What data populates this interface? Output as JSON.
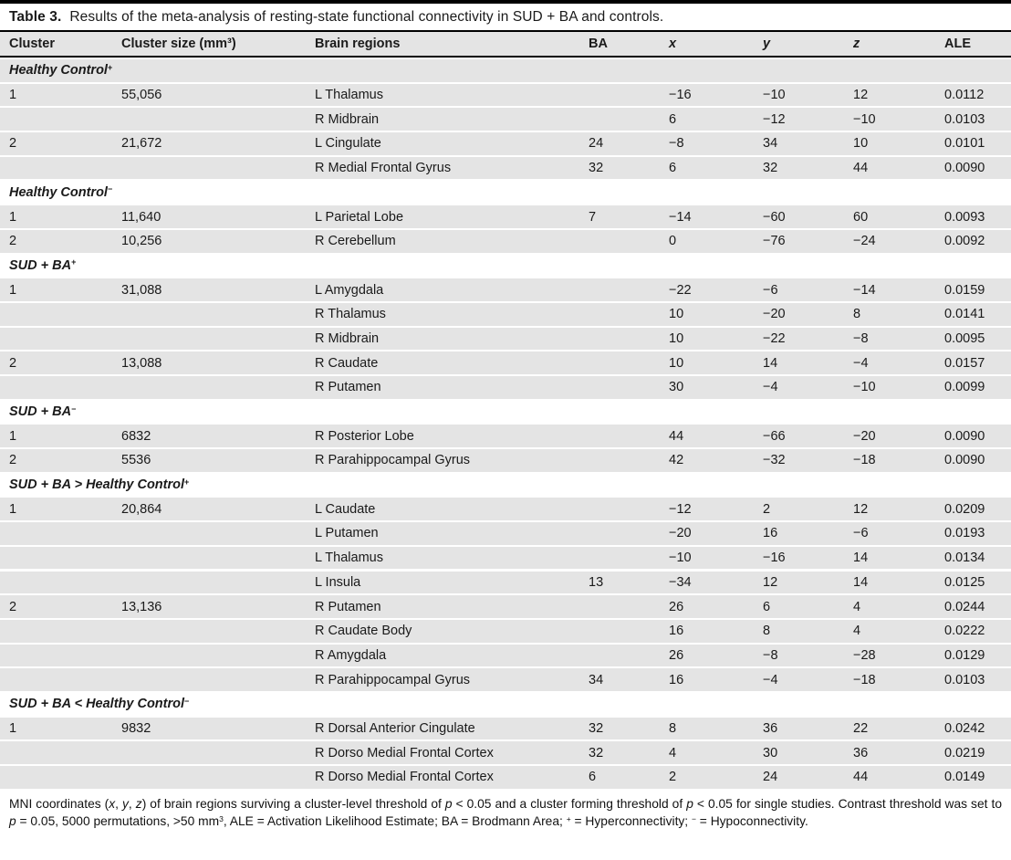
{
  "title": {
    "label": "Table 3.",
    "text": "Results of the meta-analysis of resting-state functional connectivity in SUD + BA and controls."
  },
  "columns": [
    {
      "key": "cluster",
      "label": "Cluster"
    },
    {
      "key": "size",
      "label": "Cluster size (mm³)"
    },
    {
      "key": "region",
      "label": "Brain regions"
    },
    {
      "key": "ba",
      "label": "BA"
    },
    {
      "key": "x",
      "label": "x",
      "italic": true
    },
    {
      "key": "y",
      "label": "y",
      "italic": true
    },
    {
      "key": "z",
      "label": "z",
      "italic": true
    },
    {
      "key": "ale",
      "label": "ALE"
    }
  ],
  "sections": [
    {
      "name": "Healthy Control",
      "sup": "+",
      "shaded": true,
      "rows": [
        [
          "1",
          "55,056",
          "L Thalamus",
          "",
          "−16",
          "−10",
          "12",
          "0.0112"
        ],
        [
          "",
          "",
          "R Midbrain",
          "",
          "6",
          "−12",
          "−10",
          "0.0103"
        ],
        [
          "2",
          "21,672",
          "L Cingulate",
          "24",
          "−8",
          "34",
          "10",
          "0.0101"
        ],
        [
          "",
          "",
          "R Medial Frontal Gyrus",
          "32",
          "6",
          "32",
          "44",
          "0.0090"
        ]
      ]
    },
    {
      "name": "Healthy Control",
      "sup": "−",
      "shaded": false,
      "rows": [
        [
          "1",
          "11,640",
          "L Parietal Lobe",
          "7",
          "−14",
          "−60",
          "60",
          "0.0093"
        ],
        [
          "2",
          "10,256",
          "R Cerebellum",
          "",
          "0",
          "−76",
          "−24",
          "0.0092"
        ]
      ]
    },
    {
      "name": "SUD + BA",
      "sup": "+",
      "shaded": false,
      "rows": [
        [
          "1",
          "31,088",
          "L Amygdala",
          "",
          "−22",
          "−6",
          "−14",
          "0.0159"
        ],
        [
          "",
          "",
          "R Thalamus",
          "",
          "10",
          "−20",
          "8",
          "0.0141"
        ],
        [
          "",
          "",
          "R Midbrain",
          "",
          "10",
          "−22",
          "−8",
          "0.0095"
        ],
        [
          "2",
          "13,088",
          "R Caudate",
          "",
          "10",
          "14",
          "−4",
          "0.0157"
        ],
        [
          "",
          "",
          "R Putamen",
          "",
          "30",
          "−4",
          "−10",
          "0.0099"
        ]
      ]
    },
    {
      "name": "SUD + BA",
      "sup": "−",
      "shaded": false,
      "rows": [
        [
          "1",
          "6832",
          "R Posterior Lobe",
          "",
          "44",
          "−66",
          "−20",
          "0.0090"
        ],
        [
          "2",
          "5536",
          "R Parahippocampal Gyrus",
          "",
          "42",
          "−32",
          "−18",
          "0.0090"
        ]
      ]
    },
    {
      "name": "SUD + BA > Healthy Control",
      "sup": "+",
      "shaded": false,
      "rows": [
        [
          "1",
          "20,864",
          "L Caudate",
          "",
          "−12",
          "2",
          "12",
          "0.0209"
        ],
        [
          "",
          "",
          "L Putamen",
          "",
          "−20",
          "16",
          "−6",
          "0.0193"
        ],
        [
          "",
          "",
          "L Thalamus",
          "",
          "−10",
          "−16",
          "14",
          "0.0134"
        ],
        [
          "",
          "",
          "L Insula",
          "13",
          "−34",
          "12",
          "14",
          "0.0125"
        ],
        [
          "2",
          "13,136",
          "R Putamen",
          "",
          "26",
          "6",
          "4",
          "0.0244"
        ],
        [
          "",
          "",
          "R Caudate Body",
          "",
          "16",
          "8",
          "4",
          "0.0222"
        ],
        [
          "",
          "",
          "R Amygdala",
          "",
          "26",
          "−8",
          "−28",
          "0.0129"
        ],
        [
          "",
          "",
          "R Parahippocampal Gyrus",
          "34",
          "16",
          "−4",
          "−18",
          "0.0103"
        ]
      ]
    },
    {
      "name": "SUD + BA < Healthy Control",
      "sup": "−",
      "shaded": false,
      "rows": [
        [
          "1",
          "9832",
          "R Dorsal Anterior Cingulate",
          "32",
          "8",
          "36",
          "22",
          "0.0242"
        ],
        [
          "",
          "",
          "R Dorso Medial Frontal Cortex",
          "32",
          "4",
          "30",
          "36",
          "0.0219"
        ],
        [
          "",
          "",
          "R Dorso Medial Frontal Cortex",
          "6",
          "2",
          "24",
          "44",
          "0.0149"
        ]
      ]
    }
  ],
  "footnote_segments": [
    {
      "t": "MNI coordinates ("
    },
    {
      "t": "x",
      "i": true
    },
    {
      "t": ", "
    },
    {
      "t": "y",
      "i": true
    },
    {
      "t": ", "
    },
    {
      "t": "z",
      "i": true
    },
    {
      "t": ") of brain regions surviving a cluster-level threshold of "
    },
    {
      "t": "p",
      "i": true
    },
    {
      "t": " < 0.05 and a cluster forming threshold of "
    },
    {
      "t": "p",
      "i": true
    },
    {
      "t": " < 0.05 for single studies. Contrast threshold was set to "
    },
    {
      "t": "p",
      "i": true
    },
    {
      "t": " = 0.05, 5000 permutations, >50 mm"
    },
    {
      "t": "3",
      "sup": true
    },
    {
      "t": ", ALE = Activation Likelihood Estimate; BA = Brodmann Area; "
    },
    {
      "t": "+",
      "sup": true
    },
    {
      "t": " = Hyperconnectivity; "
    },
    {
      "t": "−",
      "sup": true
    },
    {
      "t": " = Hypoconnectivity."
    }
  ]
}
